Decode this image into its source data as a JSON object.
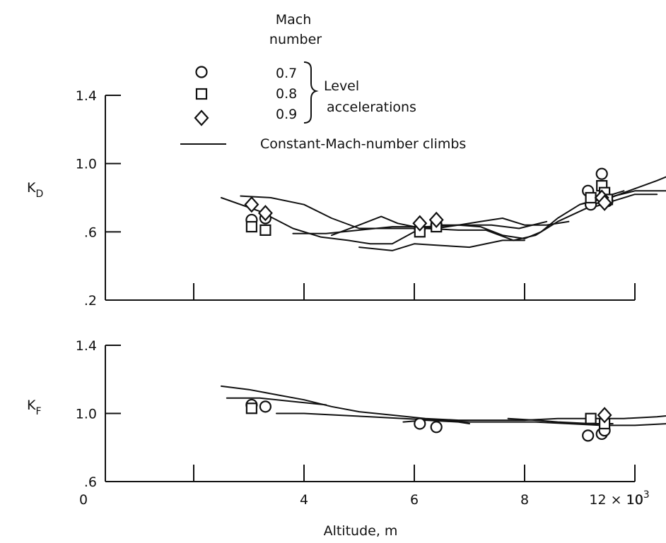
{
  "legend": {
    "header_line1": "Mach",
    "header_line2": "number",
    "entries": [
      {
        "marker": "circle-icon",
        "mach": "0.7"
      },
      {
        "marker": "square-icon",
        "mach": "0.8"
      },
      {
        "marker": "diamond-icon",
        "mach": "0.9"
      }
    ],
    "group_label_line1": "Level",
    "group_label_line2": "accelerations",
    "line_label": "Constant-Mach-number climbs"
  },
  "chart_data": [
    {
      "type": "scatter",
      "panel": "top",
      "ylabel_main": "K",
      "ylabel_sub": "D",
      "xlabel": "",
      "xlim": [
        0,
        12
      ],
      "ylim": [
        0.2,
        1.4
      ],
      "yticks": [
        0.2,
        0.6,
        1.0,
        1.4
      ],
      "ytick_labels": [
        ".2",
        ".6",
        "1.0",
        "1.4"
      ],
      "xticks": [
        0,
        2,
        4,
        6,
        8,
        10,
        12
      ],
      "series": [
        {
          "marker": "circle",
          "points": [
            [
              3.05,
              0.67
            ],
            [
              3.3,
              0.68
            ],
            [
              6.1,
              0.62
            ],
            [
              6.4,
              0.64
            ],
            [
              9.15,
              0.84
            ],
            [
              9.2,
              0.76
            ],
            [
              9.4,
              0.94
            ],
            [
              9.45,
              0.8
            ],
            [
              9.5,
              0.78
            ]
          ]
        },
        {
          "marker": "square",
          "points": [
            [
              3.05,
              0.63
            ],
            [
              3.3,
              0.61
            ],
            [
              6.1,
              0.6
            ],
            [
              6.4,
              0.63
            ],
            [
              9.2,
              0.8
            ],
            [
              9.4,
              0.87
            ],
            [
              9.45,
              0.83
            ],
            [
              9.5,
              0.79
            ]
          ]
        },
        {
          "marker": "diamond",
          "points": [
            [
              3.05,
              0.76
            ],
            [
              3.3,
              0.71
            ],
            [
              6.1,
              0.65
            ],
            [
              6.4,
              0.67
            ],
            [
              9.4,
              0.8
            ],
            [
              9.45,
              0.77
            ]
          ]
        }
      ],
      "curves": [
        [
          [
            2.5,
            0.8
          ],
          [
            3.2,
            0.72
          ],
          [
            3.8,
            0.62
          ],
          [
            4.3,
            0.57
          ],
          [
            4.8,
            0.55
          ],
          [
            5.2,
            0.53
          ],
          [
            5.6,
            0.53
          ],
          [
            6.0,
            0.6
          ],
          [
            6.4,
            0.64
          ],
          [
            6.8,
            0.64
          ],
          [
            7.2,
            0.63
          ],
          [
            7.6,
            0.58
          ],
          [
            8.0,
            0.56
          ],
          [
            8.3,
            0.6
          ],
          [
            8.6,
            0.68
          ],
          [
            9.0,
            0.76
          ],
          [
            9.4,
            0.8
          ],
          [
            9.8,
            0.84
          ]
        ],
        [
          [
            2.85,
            0.81
          ],
          [
            3.4,
            0.8
          ],
          [
            4.0,
            0.76
          ],
          [
            4.5,
            0.68
          ],
          [
            5.0,
            0.62
          ],
          [
            5.6,
            0.62
          ],
          [
            6.2,
            0.62
          ],
          [
            6.8,
            0.61
          ],
          [
            7.3,
            0.61
          ],
          [
            7.8,
            0.55
          ],
          [
            8.2,
            0.58
          ],
          [
            8.6,
            0.66
          ],
          [
            9.0,
            0.72
          ],
          [
            9.4,
            0.78
          ],
          [
            9.8,
            0.83
          ],
          [
            10.4,
            0.9
          ],
          [
            11.0,
            0.98
          ],
          [
            11.6,
            1.06
          ],
          [
            12.3,
            1.12
          ]
        ],
        [
          [
            3.8,
            0.59
          ],
          [
            4.4,
            0.59
          ],
          [
            5.0,
            0.61
          ],
          [
            5.6,
            0.63
          ],
          [
            6.2,
            0.63
          ],
          [
            6.8,
            0.64
          ],
          [
            7.4,
            0.64
          ],
          [
            7.9,
            0.62
          ],
          [
            8.4,
            0.66
          ]
        ],
        [
          [
            4.5,
            0.58
          ],
          [
            5.0,
            0.64
          ],
          [
            5.4,
            0.69
          ],
          [
            5.7,
            0.65
          ],
          [
            6.0,
            0.63
          ],
          [
            6.4,
            0.62
          ],
          [
            6.8,
            0.64
          ],
          [
            7.2,
            0.66
          ],
          [
            7.6,
            0.68
          ],
          [
            8.0,
            0.64
          ],
          [
            8.4,
            0.64
          ],
          [
            8.8,
            0.66
          ]
        ],
        [
          [
            5.0,
            0.51
          ],
          [
            5.6,
            0.49
          ],
          [
            6.0,
            0.53
          ],
          [
            6.5,
            0.52
          ],
          [
            7.0,
            0.51
          ],
          [
            7.6,
            0.55
          ],
          [
            8.0,
            0.55
          ]
        ],
        [
          [
            9.0,
            0.76
          ],
          [
            9.5,
            0.8
          ],
          [
            10.0,
            0.84
          ],
          [
            10.6,
            0.84
          ],
          [
            11.2,
            0.86
          ],
          [
            11.5,
            0.88
          ],
          [
            11.9,
            0.92
          ]
        ],
        [
          [
            9.2,
            0.74
          ],
          [
            9.6,
            0.78
          ],
          [
            10.0,
            0.82
          ],
          [
            10.4,
            0.82
          ]
        ]
      ]
    },
    {
      "type": "scatter",
      "panel": "bottom",
      "ylabel_main": "K",
      "ylabel_sub": "F",
      "xlabel": "Altitude, m",
      "xlim": [
        0,
        12
      ],
      "ylim": [
        0.6,
        1.4
      ],
      "yticks": [
        0.6,
        1.0,
        1.4
      ],
      "ytick_labels": [
        ".6",
        "1.0",
        "1.4"
      ],
      "xticks": [
        0,
        2,
        4,
        6,
        8,
        10,
        12
      ],
      "xtick_labels": [
        "0",
        "",
        "4",
        "6",
        "8",
        "10",
        "12 × 10"
      ],
      "xtick_exponent": "3",
      "series": [
        {
          "marker": "circle",
          "points": [
            [
              3.05,
              1.05
            ],
            [
              3.3,
              1.04
            ],
            [
              6.1,
              0.94
            ],
            [
              6.4,
              0.92
            ],
            [
              9.15,
              0.87
            ],
            [
              9.4,
              0.88
            ],
            [
              9.45,
              0.9
            ]
          ]
        },
        {
          "marker": "square",
          "points": [
            [
              3.05,
              1.03
            ],
            [
              9.2,
              0.97
            ],
            [
              9.45,
              0.94
            ]
          ]
        },
        {
          "marker": "diamond",
          "points": [
            [
              9.45,
              0.99
            ]
          ]
        }
      ],
      "curves": [
        [
          [
            2.5,
            1.16
          ],
          [
            3.0,
            1.14
          ],
          [
            3.5,
            1.11
          ],
          [
            4.0,
            1.08
          ],
          [
            4.5,
            1.04
          ],
          [
            5.0,
            1.01
          ],
          [
            5.6,
            0.99
          ],
          [
            6.2,
            0.97
          ],
          [
            6.8,
            0.96
          ],
          [
            7.4,
            0.96
          ],
          [
            8.0,
            0.96
          ],
          [
            8.6,
            0.97
          ],
          [
            9.2,
            0.97
          ],
          [
            9.8,
            0.97
          ],
          [
            10.4,
            0.98
          ],
          [
            11.0,
            1.0
          ],
          [
            11.6,
            1.03
          ],
          [
            12.2,
            1.08
          ]
        ],
        [
          [
            2.6,
            1.09
          ],
          [
            3.2,
            1.09
          ],
          [
            3.8,
            1.07
          ],
          [
            4.4,
            1.05
          ]
        ],
        [
          [
            3.5,
            1.0
          ],
          [
            4.0,
            1.0
          ],
          [
            4.6,
            0.99
          ],
          [
            5.2,
            0.98
          ],
          [
            5.8,
            0.97
          ],
          [
            6.4,
            0.96
          ],
          [
            7.0,
            0.95
          ],
          [
            7.6,
            0.95
          ],
          [
            8.2,
            0.95
          ],
          [
            8.8,
            0.94
          ],
          [
            9.4,
            0.93
          ],
          [
            10.0,
            0.93
          ],
          [
            10.6,
            0.94
          ],
          [
            11.2,
            0.97
          ],
          [
            11.6,
            0.98
          ]
        ],
        [
          [
            5.8,
            0.95
          ],
          [
            6.2,
            0.96
          ],
          [
            6.8,
            0.95
          ],
          [
            7.0,
            0.94
          ]
        ],
        [
          [
            7.7,
            0.97
          ],
          [
            8.2,
            0.96
          ],
          [
            8.6,
            0.95
          ],
          [
            9.2,
            0.94
          ],
          [
            9.6,
            0.94
          ]
        ]
      ]
    }
  ]
}
